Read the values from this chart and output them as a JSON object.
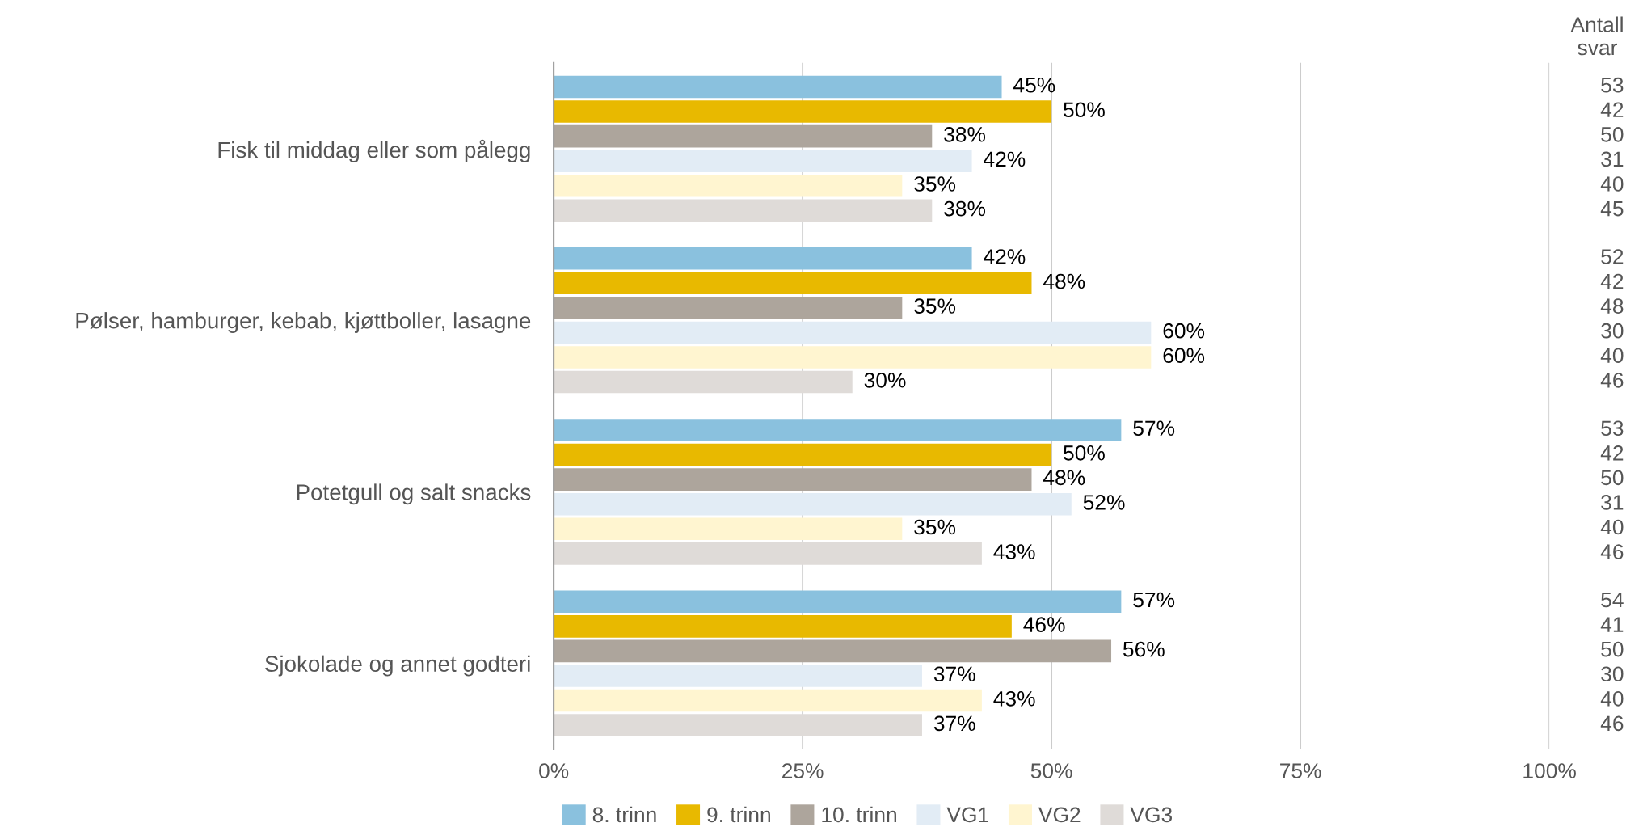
{
  "chart_data": {
    "type": "bar",
    "orientation": "horizontal",
    "categories": [
      "Fisk til middag eller som pålegg",
      "Pølser, hamburger, kebab, kjøttboller, lasagne",
      "Potetgull og salt snacks",
      "Sjokolade og annet godteri"
    ],
    "series": [
      {
        "name": "8. trinn",
        "color": "#8ac1de",
        "values": [
          45,
          42,
          57,
          57
        ],
        "value_labels": [
          "45%",
          "42%",
          "57%",
          "57%"
        ]
      },
      {
        "name": "9. trinn",
        "color": "#e8b900",
        "values": [
          50,
          48,
          50,
          46
        ],
        "value_labels": [
          "50%",
          "48%",
          "50%",
          "46%"
        ]
      },
      {
        "name": "10. trinn",
        "color": "#ada59c",
        "values": [
          38,
          35,
          48,
          56
        ],
        "value_labels": [
          "38%",
          "35%",
          "48%",
          "56%"
        ]
      },
      {
        "name": "VG1",
        "color": "#e2ecf5",
        "values": [
          42,
          60,
          52,
          37
        ],
        "value_labels": [
          "42%",
          "60%",
          "52%",
          "37%"
        ]
      },
      {
        "name": "VG2",
        "color": "#fff5d0",
        "values": [
          35,
          60,
          35,
          43
        ],
        "value_labels": [
          "35%",
          "60%",
          "35%",
          "43%"
        ]
      },
      {
        "name": "VG3",
        "color": "#dfdbd8",
        "values": [
          38,
          30,
          43,
          37
        ],
        "value_labels": [
          "38%",
          "30%",
          "43%",
          "37%"
        ]
      }
    ],
    "xlim": [
      0,
      100
    ],
    "xticks": [
      {
        "value": 0,
        "label": "0%"
      },
      {
        "value": 25,
        "label": "25%"
      },
      {
        "value": 50,
        "label": "50%"
      },
      {
        "value": 75,
        "label": "75%"
      },
      {
        "value": 100,
        "label": "100%"
      }
    ],
    "grid": "x",
    "legend": "bottom",
    "annotations": [
      "Antall\nsvar",
      "53",
      "42",
      "50",
      "31",
      "40",
      "45",
      "52",
      "42",
      "48",
      "30",
      "40",
      "46",
      "53",
      "42",
      "50",
      "31",
      "40",
      "46",
      "54",
      "41",
      "50",
      "30",
      "40",
      "46"
    ]
  }
}
